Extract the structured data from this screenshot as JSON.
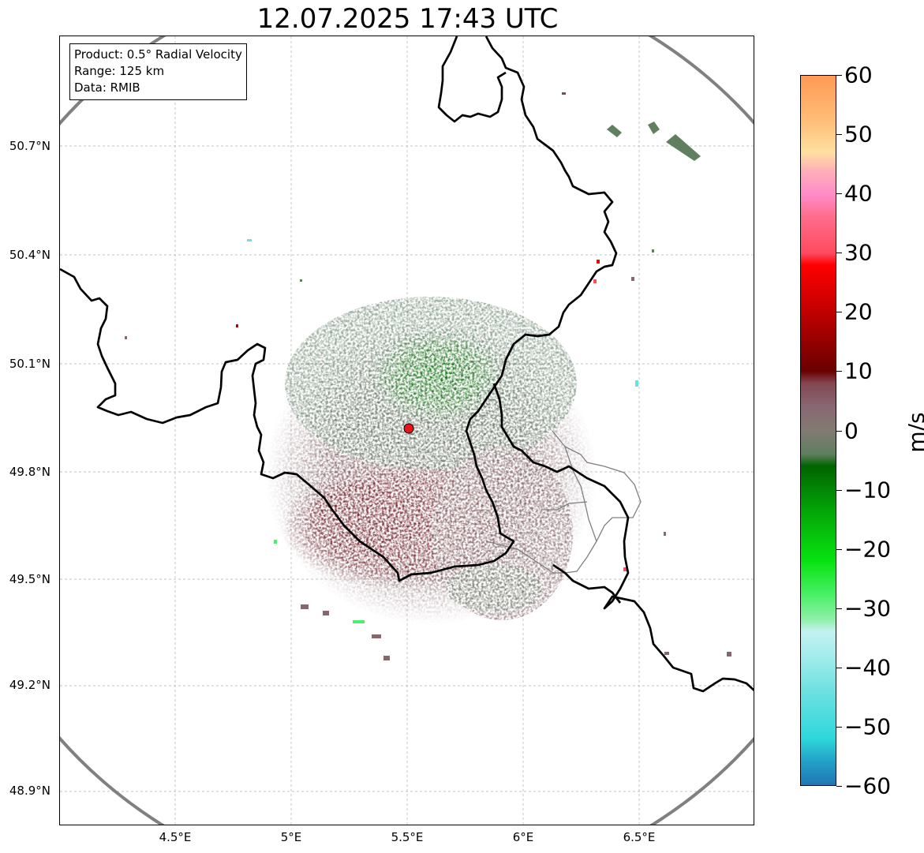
{
  "title": "12.07.2025 17:43 UTC",
  "info_box": {
    "lines": [
      "Product: 0.5° Radial Velocity",
      "Range: 125 km",
      "Data: RMIB"
    ]
  },
  "map": {
    "lat_ticks": [
      "50.7°N",
      "50.4°N",
      "50.1°N",
      "49.8°N",
      "49.5°N",
      "49.2°N",
      "48.9°N"
    ],
    "lon_ticks": [
      "4.5°E",
      "5°E",
      "5.5°E",
      "6°E",
      "6.5°E"
    ],
    "range_ring_color": "#808080",
    "border_color": "#000000",
    "region_border_color": "#808080",
    "radar_site_color": "#e8141c",
    "gridlines": true
  },
  "colorbar": {
    "unit": "m/s",
    "ticks": [
      "60",
      "50",
      "40",
      "30",
      "20",
      "10",
      "0",
      "−10",
      "−20",
      "−30",
      "−40",
      "−50",
      "−60"
    ],
    "range": [
      -60,
      60
    ],
    "stops": [
      {
        "v": -60,
        "color": "#1f77b4"
      },
      {
        "v": -56,
        "color": "#23a0c8"
      },
      {
        "v": -52,
        "color": "#2ed8dc"
      },
      {
        "v": -44,
        "color": "#6fe0e0"
      },
      {
        "v": -38,
        "color": "#a6ecec"
      },
      {
        "v": -34,
        "color": "#c3f1f1"
      },
      {
        "v": -32,
        "color": "#90f0a8"
      },
      {
        "v": -28,
        "color": "#4cf06a"
      },
      {
        "v": -22,
        "color": "#06e30f"
      },
      {
        "v": -14,
        "color": "#04a808"
      },
      {
        "v": -6,
        "color": "#006400"
      },
      {
        "v": -4,
        "color": "#5f7f5f"
      },
      {
        "v": 0,
        "color": "#827a72"
      },
      {
        "v": 4,
        "color": "#896873"
      },
      {
        "v": 8,
        "color": "#834651"
      },
      {
        "v": 10,
        "color": "#6a0000"
      },
      {
        "v": 20,
        "color": "#c00000"
      },
      {
        "v": 28,
        "color": "#ff0000"
      },
      {
        "v": 30,
        "color": "#ff4a60"
      },
      {
        "v": 36,
        "color": "#ff6c8a"
      },
      {
        "v": 40,
        "color": "#ff8cc8"
      },
      {
        "v": 44,
        "color": "#ffb0b8"
      },
      {
        "v": 47,
        "color": "#ffe0a0"
      },
      {
        "v": 52,
        "color": "#ffc07a"
      },
      {
        "v": 60,
        "color": "#ff9955"
      }
    ]
  }
}
